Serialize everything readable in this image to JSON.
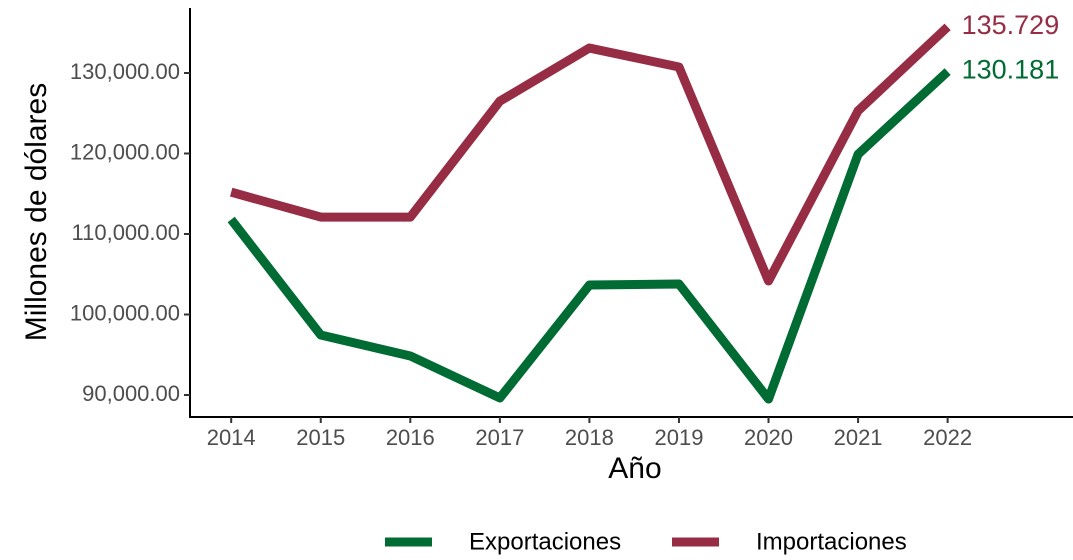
{
  "chart_data": {
    "type": "line",
    "x_label": "Año",
    "y_label": "Millones de dólares",
    "x": [
      2014,
      2015,
      2016,
      2017,
      2018,
      2019,
      2020,
      2021,
      2022
    ],
    "series": [
      {
        "name": "Exportaciones",
        "color": "#006b33",
        "values": [
          111800,
          97450,
          94850,
          89630,
          103660,
          103790,
          89500,
          119900,
          130181
        ],
        "value_labels": [
          null,
          null,
          null,
          null,
          null,
          null,
          null,
          null,
          "130.181"
        ]
      },
      {
        "name": "Importaciones",
        "color": "#962d45",
        "values": [
          115200,
          112100,
          112100,
          126500,
          133100,
          130750,
          104160,
          125300,
          135729
        ],
        "value_labels": [
          null,
          null,
          null,
          null,
          null,
          null,
          null,
          null,
          "135.729"
        ]
      }
    ],
    "xlim": [
      2013.54,
      2023.4
    ],
    "xticks": [
      2014,
      2015,
      2016,
      2017,
      2018,
      2019,
      2020,
      2021,
      2022
    ],
    "ylim": [
      87267,
      138075
    ],
    "yticks": [
      {
        "value": 90000,
        "label": "90,000.00"
      },
      {
        "value": 100000,
        "label": "100,000.00"
      },
      {
        "value": 110000,
        "label": "110,000.00"
      },
      {
        "value": 120000,
        "label": "120,000.00"
      },
      {
        "value": 130000,
        "label": "130,000.00"
      }
    ],
    "legend": "bottom"
  }
}
